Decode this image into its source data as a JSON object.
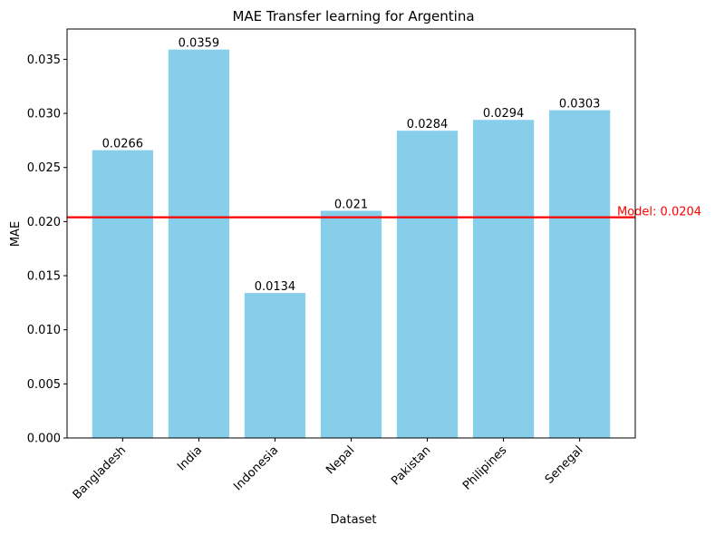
{
  "chart_data": {
    "type": "bar",
    "title": "MAE Transfer learning for Argentina",
    "xlabel": "Dataset",
    "ylabel": "MAE",
    "categories": [
      "Bangladesh",
      "India",
      "Indonesia",
      "Nepal",
      "Pakistan",
      "Philipines",
      "Senegal"
    ],
    "values": [
      0.0266,
      0.0359,
      0.0134,
      0.021,
      0.0284,
      0.0294,
      0.0303
    ],
    "data_labels": [
      "0.0266",
      "0.0359",
      "0.0134",
      "0.021",
      "0.0284",
      "0.0294",
      "0.0303"
    ],
    "ylim": [
      0,
      0.0378
    ],
    "yticks": [
      0,
      0.005,
      0.01,
      0.015,
      0.02,
      0.025,
      0.03,
      0.035
    ],
    "ytick_labels": [
      "0.000",
      "0.005",
      "0.010",
      "0.015",
      "0.020",
      "0.025",
      "0.030",
      "0.035"
    ],
    "grid": false,
    "bar_color": "#87CEEB",
    "reference_line": {
      "value": 0.0204,
      "label": "Model: 0.0204",
      "color": "#FF0000"
    }
  }
}
